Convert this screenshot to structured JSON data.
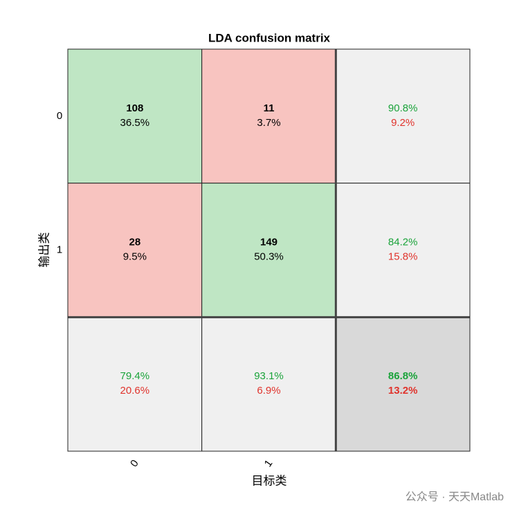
{
  "chart_data": {
    "type": "confusion",
    "title": "LDA confusion matrix",
    "xlabel": "目标类",
    "ylabel": "输出类",
    "categories": [
      "0",
      "1"
    ],
    "counts": [
      [
        108,
        11
      ],
      [
        28,
        149
      ]
    ],
    "percents": [
      [
        36.5,
        3.7
      ],
      [
        9.5,
        50.3
      ]
    ],
    "percent_labels": [
      [
        "36.5%",
        "3.7%"
      ],
      [
        "9.5%",
        "50.3%"
      ]
    ],
    "row_correct": [
      90.8,
      84.2
    ],
    "row_correct_labels": [
      "90.8%",
      "84.2%"
    ],
    "row_error": [
      9.2,
      15.8
    ],
    "row_error_labels": [
      "9.2%",
      "15.8%"
    ],
    "col_correct": [
      79.4,
      93.1
    ],
    "col_correct_labels": [
      "79.4%",
      "93.1%"
    ],
    "col_error": [
      20.6,
      6.9
    ],
    "col_error_labels": [
      "20.6%",
      "6.9%"
    ],
    "overall_correct": 86.8,
    "overall_correct_label": "86.8%",
    "overall_error": 13.2,
    "overall_error_label": "13.2%",
    "colors": {
      "correct": "#bfe6c4",
      "wrong": "#f8c4c0",
      "summary": "#f0f0f0",
      "overall": "#d9d9d9",
      "good_text": "#1aa33a",
      "bad_text": "#e0332c"
    },
    "watermark": "公众号 · 天天Matlab"
  }
}
